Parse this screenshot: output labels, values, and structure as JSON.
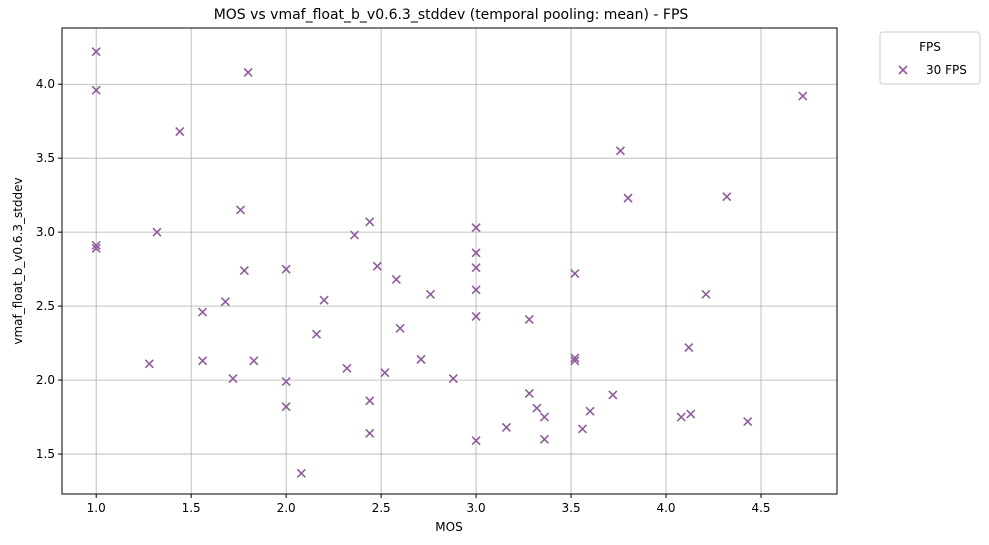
{
  "chart_data": {
    "type": "scatter",
    "title": "MOS vs vmaf_float_b_v0.6.3_stddev (temporal pooling: mean) - FPS",
    "xlabel": "MOS",
    "ylabel": "vmaf_float_b_v0.6.3_stddev",
    "xlim": [
      0.82,
      4.9
    ],
    "ylim": [
      1.23,
      4.38
    ],
    "xticks": [
      "1.0",
      "1.5",
      "2.0",
      "2.5",
      "3.0",
      "3.5",
      "4.0",
      "4.5"
    ],
    "yticks": [
      "1.5",
      "2.0",
      "2.5",
      "3.0",
      "3.5",
      "4.0"
    ],
    "grid": true,
    "legend": {
      "title": "FPS",
      "placement": "outside-top-right"
    },
    "marker": "x",
    "series": [
      {
        "name": "30 FPS",
        "color": "#8e5c9b",
        "points": [
          [
            1.0,
            4.22
          ],
          [
            1.0,
            3.96
          ],
          [
            1.0,
            2.91
          ],
          [
            1.0,
            2.89
          ],
          [
            1.28,
            2.11
          ],
          [
            1.32,
            3.0
          ],
          [
            1.44,
            3.68
          ],
          [
            1.56,
            2.46
          ],
          [
            1.56,
            2.13
          ],
          [
            1.68,
            2.53
          ],
          [
            1.72,
            2.01
          ],
          [
            1.76,
            3.15
          ],
          [
            1.78,
            2.74
          ],
          [
            1.8,
            4.08
          ],
          [
            1.83,
            2.13
          ],
          [
            2.0,
            2.75
          ],
          [
            2.0,
            1.99
          ],
          [
            2.0,
            1.82
          ],
          [
            2.08,
            1.37
          ],
          [
            2.16,
            2.31
          ],
          [
            2.2,
            2.54
          ],
          [
            2.32,
            2.08
          ],
          [
            2.36,
            2.98
          ],
          [
            2.44,
            3.07
          ],
          [
            2.44,
            1.86
          ],
          [
            2.44,
            1.64
          ],
          [
            2.48,
            2.77
          ],
          [
            2.52,
            2.05
          ],
          [
            2.58,
            2.68
          ],
          [
            2.6,
            2.35
          ],
          [
            2.71,
            2.14
          ],
          [
            2.76,
            2.58
          ],
          [
            2.88,
            2.01
          ],
          [
            3.0,
            3.03
          ],
          [
            3.0,
            2.86
          ],
          [
            3.0,
            2.76
          ],
          [
            3.0,
            2.61
          ],
          [
            3.0,
            2.43
          ],
          [
            3.0,
            1.59
          ],
          [
            3.16,
            1.68
          ],
          [
            3.28,
            2.41
          ],
          [
            3.28,
            1.91
          ],
          [
            3.32,
            1.81
          ],
          [
            3.36,
            1.75
          ],
          [
            3.36,
            1.6
          ],
          [
            3.52,
            2.72
          ],
          [
            3.52,
            2.15
          ],
          [
            3.52,
            2.13
          ],
          [
            3.56,
            1.67
          ],
          [
            3.6,
            1.79
          ],
          [
            3.72,
            1.9
          ],
          [
            3.76,
            3.55
          ],
          [
            3.8,
            3.23
          ],
          [
            4.08,
            1.75
          ],
          [
            4.12,
            2.22
          ],
          [
            4.13,
            1.77
          ],
          [
            4.21,
            2.58
          ],
          [
            4.32,
            3.24
          ],
          [
            4.43,
            1.72
          ],
          [
            4.72,
            3.92
          ]
        ]
      }
    ]
  }
}
